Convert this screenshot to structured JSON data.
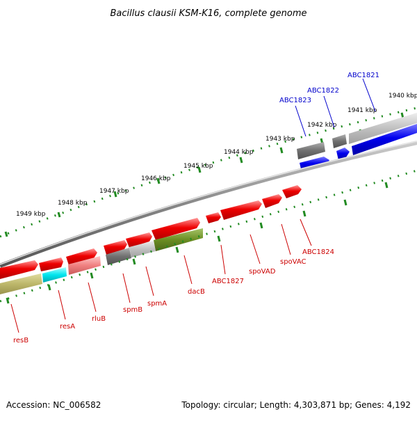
{
  "title": "Bacillus clausii KSM-K16, complete genome",
  "footer": {
    "accession": "Accession: NC_006582",
    "summary": "Topology: circular; Length: 4,303,871 bp; Genes: 4,192"
  },
  "ticks": [
    "1940 kbp",
    "1941 kbp",
    "1942 kbp",
    "1943 kbp",
    "1944 kbp",
    "1945 kbp",
    "1946 kbp",
    "1947 kbp",
    "1948 kbp",
    "1949 kbp"
  ],
  "top_labels": [
    "ABC1821",
    "ABC1822",
    "ABC1823"
  ],
  "bottom_labels": [
    "resB",
    "resA",
    "rluB",
    "spmB",
    "spmA",
    "dacB",
    "ABC1827",
    "spoVAD",
    "spoVAC",
    "ABC1824"
  ],
  "colors": {
    "forward_gene": "#0000ee",
    "reverse_gene": "#ee0000",
    "pseudo_gray": "#777777",
    "light_gray": "#bbbbbb",
    "olive": "#6b8e23",
    "khaki": "#bdb76b",
    "cyan": "#00e5ee",
    "pink": "#f08080",
    "tick_green": "#228b22",
    "backbone": "#888888",
    "top_label": "#0000cc",
    "bottom_label": "#cc0000"
  }
}
